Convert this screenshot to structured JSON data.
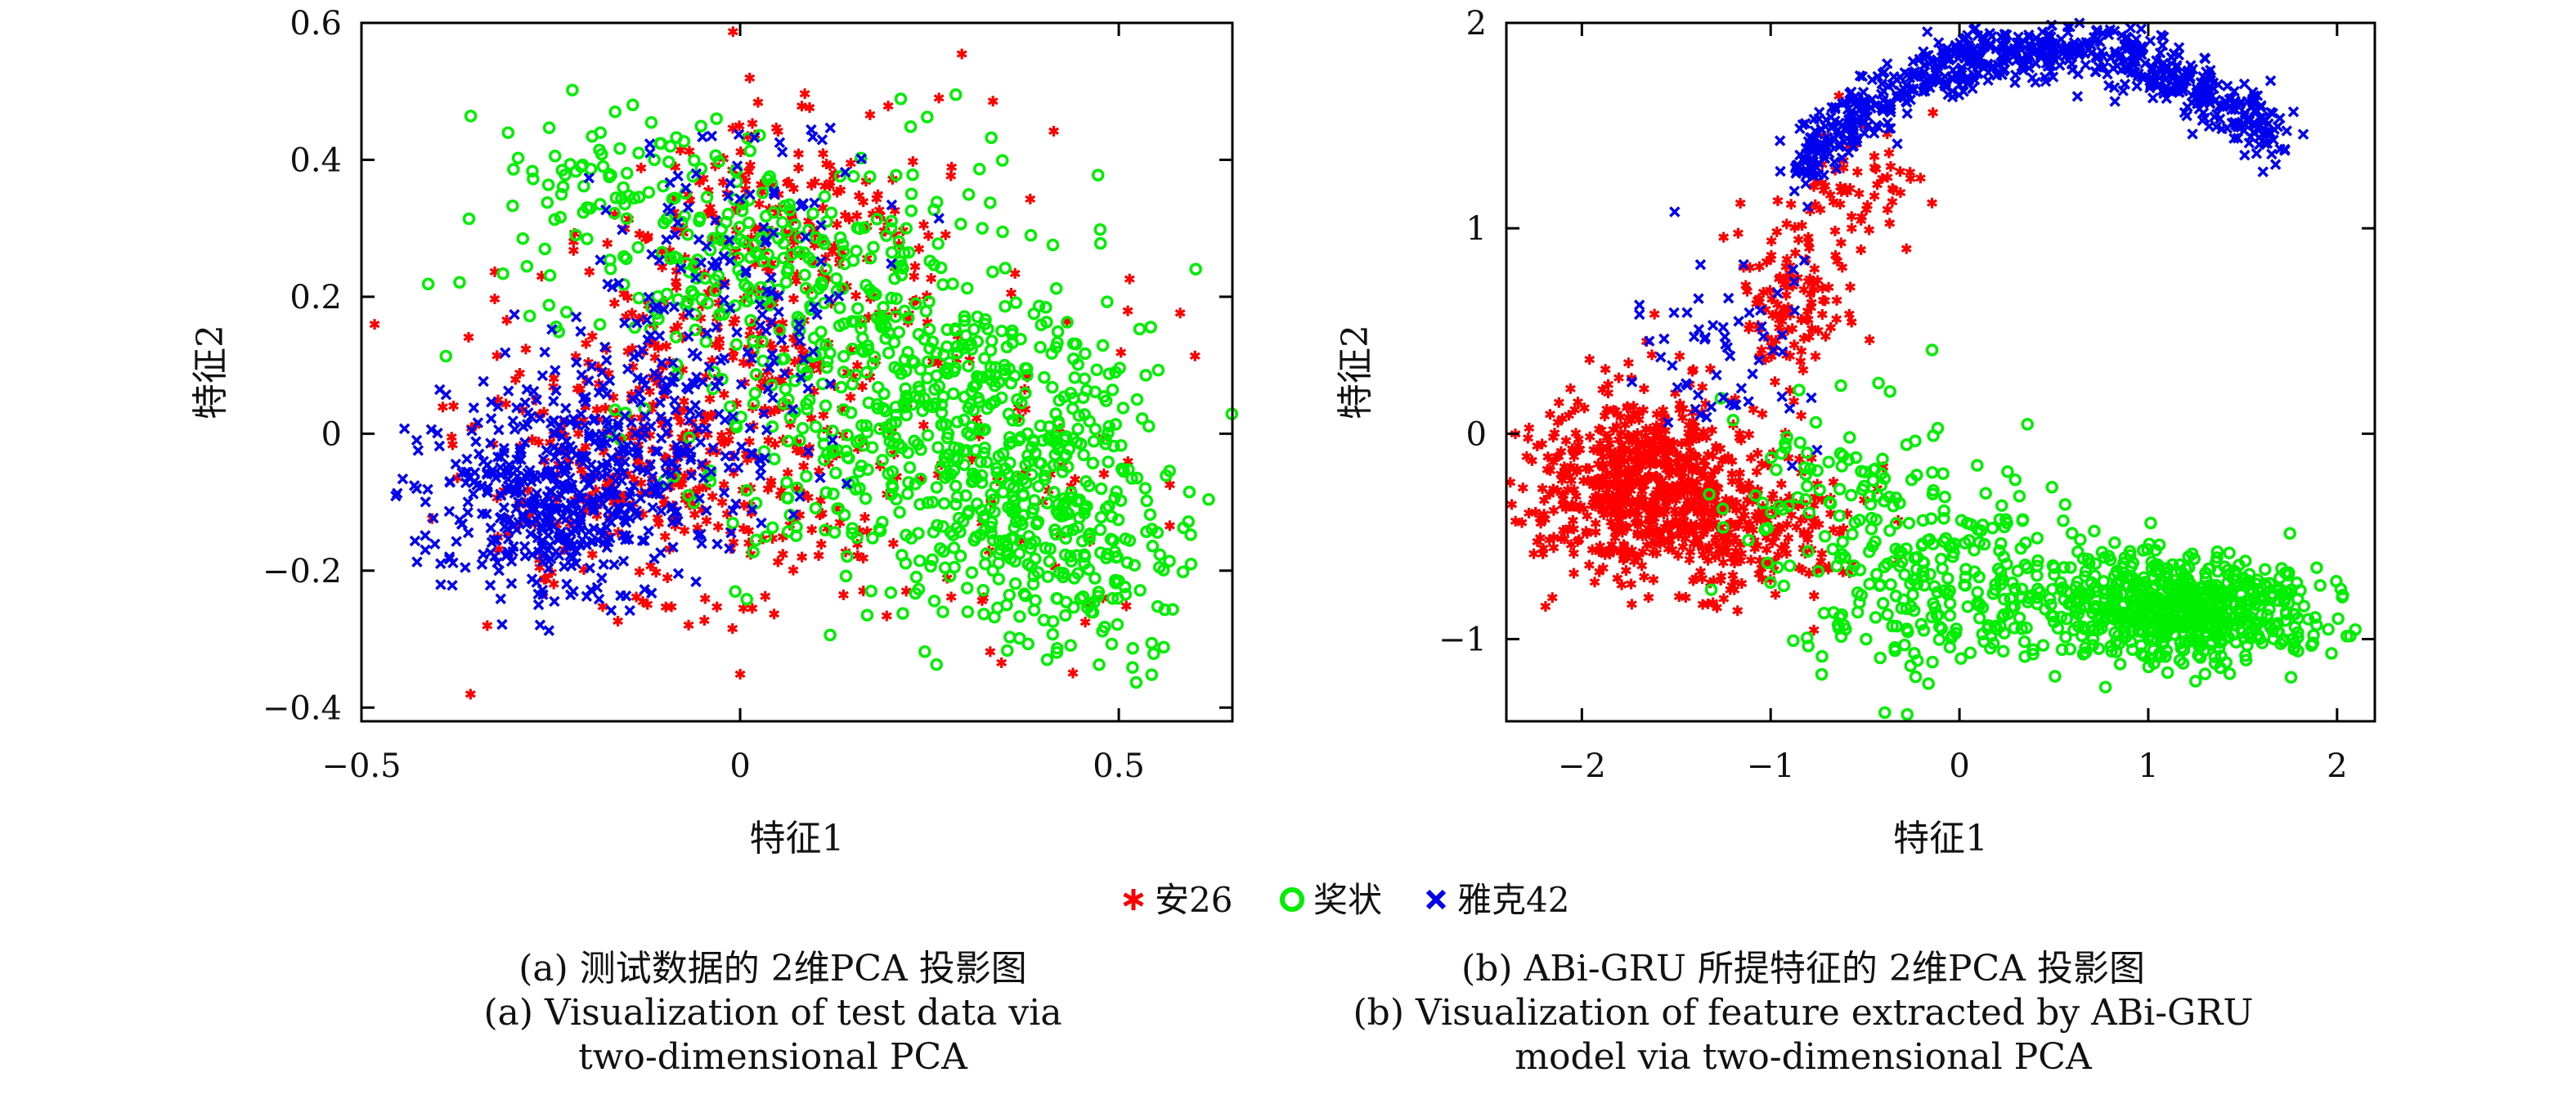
{
  "chart_data": [
    {
      "type": "scatter",
      "panel_label": "(a)",
      "xlabel": "特征1",
      "ylabel": "特征2",
      "xlim": [
        -0.5,
        0.65
      ],
      "ylim": [
        -0.42,
        0.6
      ],
      "xticks": [
        -0.5,
        0,
        0.5
      ],
      "xtick_labels": [
        "−0.5",
        "0",
        "0.5"
      ],
      "yticks": [
        -0.4,
        -0.2,
        0,
        0.2,
        0.4,
        0.6
      ],
      "ytick_labels": [
        "−0.4",
        "−0.2",
        "0",
        "0.2",
        "0.4",
        "0.6"
      ],
      "grid": false,
      "clusters": {
        "安26": [
          {
            "cx": -0.1,
            "cy": -0.05,
            "sx": 0.13,
            "sy": 0.11,
            "n": 380
          },
          {
            "cx": 0.02,
            "cy": 0.22,
            "sx": 0.11,
            "sy": 0.12,
            "n": 180
          },
          {
            "cx": 0.1,
            "cy": 0.35,
            "sx": 0.1,
            "sy": 0.1,
            "n": 90
          },
          {
            "cx": 0.3,
            "cy": -0.05,
            "sx": 0.13,
            "sy": 0.15,
            "n": 90
          }
        ],
        "奖状": [
          {
            "cx": 0.28,
            "cy": 0.02,
            "sx": 0.13,
            "sy": 0.13,
            "n": 520
          },
          {
            "cx": 0.42,
            "cy": -0.15,
            "sx": 0.08,
            "sy": 0.1,
            "n": 230
          },
          {
            "cx": 0.05,
            "cy": 0.25,
            "sx": 0.15,
            "sy": 0.12,
            "n": 280
          },
          {
            "cx": -0.18,
            "cy": 0.35,
            "sx": 0.06,
            "sy": 0.06,
            "n": 60
          }
        ],
        "雅克42": [
          {
            "cx": -0.25,
            "cy": -0.1,
            "sx": 0.08,
            "sy": 0.07,
            "n": 420
          },
          {
            "cx": -0.1,
            "cy": 0.02,
            "sx": 0.11,
            "sy": 0.09,
            "n": 220
          },
          {
            "cx": 0.0,
            "cy": 0.28,
            "sx": 0.09,
            "sy": 0.1,
            "n": 90
          }
        ]
      }
    },
    {
      "type": "scatter",
      "panel_label": "(b)",
      "xlabel": "特征1",
      "ylabel": "特征2",
      "xlim": [
        -2.4,
        2.2
      ],
      "ylim": [
        -1.4,
        2.0
      ],
      "xticks": [
        -2,
        -1,
        0,
        1,
        2
      ],
      "xtick_labels": [
        "−2",
        "−1",
        "0",
        "1",
        "2"
      ],
      "yticks": [
        -1,
        0,
        1,
        2
      ],
      "ytick_labels": [
        "−1",
        "0",
        "1",
        "2"
      ],
      "grid": false,
      "clusters": {
        "安26": [
          {
            "cx": -1.7,
            "cy": -0.25,
            "sx": 0.28,
            "sy": 0.22,
            "n": 650
          },
          {
            "cx": -1.1,
            "cy": -0.45,
            "sx": 0.3,
            "sy": 0.18,
            "n": 220
          },
          {
            "cx": -0.9,
            "cy": 0.7,
            "sx": 0.15,
            "sy": 0.2,
            "n": 120
          },
          {
            "cx": -0.5,
            "cy": 1.2,
            "sx": 0.15,
            "sy": 0.15,
            "n": 60
          }
        ],
        "奖状": [
          {
            "cx": 1.2,
            "cy": -0.85,
            "sx": 0.35,
            "sy": 0.13,
            "n": 650
          },
          {
            "cx": 0.0,
            "cy": -0.75,
            "sx": 0.45,
            "sy": 0.22,
            "n": 250
          },
          {
            "cx": -0.5,
            "cy": -0.3,
            "sx": 0.4,
            "sy": 0.25,
            "n": 110
          }
        ],
        "雅克42": [
          {
            "arc": true,
            "start": [
              -0.85,
              1.3
            ],
            "control": [
              0.4,
              2.4
            ],
            "end": [
              1.7,
              1.4
            ],
            "spread": 0.06,
            "n": 750
          },
          {
            "cx": -1.2,
            "cy": 0.4,
            "sx": 0.25,
            "sy": 0.25,
            "n": 60
          }
        ]
      }
    }
  ],
  "legend": {
    "placement": "bottom-center",
    "entries": [
      {
        "label": "安26",
        "color": "#ff0000",
        "marker": "asterisk"
      },
      {
        "label": "奖状",
        "color": "#00ee00",
        "marker": "circle"
      },
      {
        "label": "雅克42",
        "color": "#0000ee",
        "marker": "cross"
      }
    ]
  },
  "captions": {
    "a": {
      "line1": "(a) 测试数据的 2维PCA 投影图",
      "line2": "(a) Visualization of test data via",
      "line3": "two-dimensional PCA"
    },
    "b": {
      "line1": "(b) ABi-GRU 所提特征的 2维PCA 投影图",
      "line2": "(b) Visualization of feature extracted by ABi-GRU",
      "line3": "model via two-dimensional PCA"
    }
  }
}
